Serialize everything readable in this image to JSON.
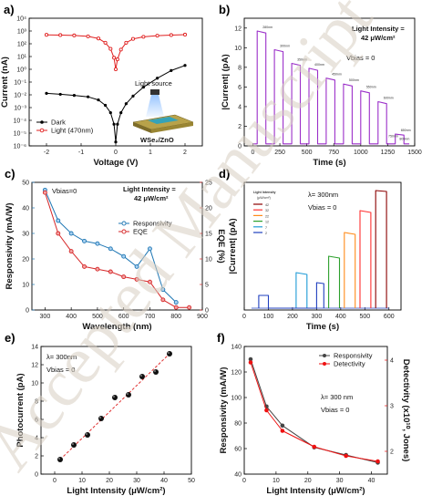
{
  "figure": {
    "watermark": "Accepted Manuscript",
    "panels": [
      "a)",
      "b)",
      "c)",
      "d)",
      "e)",
      "f)"
    ]
  },
  "chart_data": [
    {
      "panel": "a)",
      "type": "line",
      "xlabel": "Voltage (V)",
      "ylabel": "Current (nA)",
      "yscale": "log",
      "xlim": [
        -2.5,
        2.5
      ],
      "ylim": [
        1e-06,
        10000.0
      ],
      "xticks": [
        "-2",
        "-1",
        "0",
        "1",
        "2"
      ],
      "yticks": [
        "10⁴",
        "10³",
        "10²",
        "10¹",
        "10⁰",
        "10⁻¹",
        "10⁻²",
        "10⁻³",
        "10⁻⁴",
        "10⁻⁵",
        "10⁻⁶"
      ],
      "legend": "bottom-left",
      "series": [
        {
          "name": "Dark",
          "color": "#000000",
          "x": [
            -2,
            -1.6,
            -1.2,
            -0.8,
            -0.5,
            -0.3,
            -0.15,
            -0.05,
            0,
            0.05,
            0.15,
            0.3,
            0.5,
            0.8,
            1.2,
            1.6,
            2
          ],
          "y": [
            0.013,
            0.011,
            0.009,
            0.007,
            0.004,
            0.0015,
            0.0004,
            5e-05,
            2e-06,
            5e-05,
            0.0004,
            0.002,
            0.008,
            0.04,
            0.2,
            0.8,
            2
          ]
        },
        {
          "name": "Light (470nm)",
          "color": "#e02020",
          "x": [
            -2,
            -1.6,
            -1.2,
            -0.8,
            -0.5,
            -0.3,
            -0.15,
            -0.05,
            0,
            0.05,
            0.15,
            0.3,
            0.5,
            0.8,
            1.2,
            1.6,
            2
          ],
          "y": [
            500,
            480,
            450,
            380,
            260,
            120,
            40,
            8,
            1,
            6,
            35,
            120,
            240,
            350,
            430,
            480,
            520
          ]
        }
      ],
      "annotations": [
        "Light source",
        "WSe₂/ZnO"
      ]
    },
    {
      "panel": "b)",
      "type": "line",
      "xlabel": "Time (s)",
      "ylabel": "|Current| (pA)",
      "xlim": [
        -80,
        1500
      ],
      "ylim": [
        0,
        13
      ],
      "xticks": [
        "0",
        "250",
        "500",
        "750",
        "1000",
        "1250",
        "1500"
      ],
      "yticks": [
        "0",
        "2",
        "4",
        "6",
        "8",
        "10",
        "12"
      ],
      "annotations": [
        "Light Intensity =",
        "42 μW/cm²",
        "Vₕᵢₐₛ = 0"
      ],
      "series": [
        {
          "name": "",
          "color": "#9b2fc9",
          "x": [
            0,
            40,
            40,
            120,
            120,
            200,
            200,
            280,
            280,
            360,
            360,
            440,
            440,
            520,
            520,
            600,
            600,
            680,
            680,
            760,
            760,
            840,
            840,
            920,
            920,
            1000,
            1000,
            1080,
            1080,
            1160,
            1160,
            1240,
            1240,
            1320,
            1320,
            1400,
            1400,
            1450
          ],
          "y": [
            0.2,
            0.2,
            11.7,
            11.5,
            0.2,
            0.2,
            9.8,
            9.6,
            0.2,
            0.2,
            8.4,
            8.2,
            0.2,
            0.2,
            7.9,
            7.7,
            0.2,
            0.2,
            6.9,
            6.7,
            0.2,
            0.2,
            6.3,
            6.1,
            0.2,
            0.2,
            5.6,
            5.4,
            0.2,
            0.2,
            4.5,
            4.3,
            0.2,
            0.2,
            1.2,
            1.1,
            0.2,
            0.2
          ]
        }
      ],
      "data_labels": [
        "800nm",
        "750nm",
        "700nm",
        "650nm",
        "600nm",
        "550nm",
        "500nm",
        "450nm",
        "400nm",
        "350nm",
        "300nm",
        "280nm"
      ]
    },
    {
      "panel": "c)",
      "type": "line",
      "xlabel": "Wavelength (nm)",
      "ylabel": "Responsivity (mA/W)",
      "ylabel_right": "EQE (%)",
      "xlim": [
        250,
        900
      ],
      "ylim": [
        0,
        50
      ],
      "ylim_right": [
        0,
        25
      ],
      "xticks": [
        "300",
        "400",
        "500",
        "600",
        "700",
        "800",
        "900"
      ],
      "yticks": [
        "0",
        "10",
        "20",
        "30",
        "40",
        "50"
      ],
      "yticks_right": [
        "0",
        "5",
        "10",
        "15",
        "20",
        "25"
      ],
      "annotations": [
        "Vₕᵢₐₛ=0",
        "Light Intensity =",
        "42 μW/cm²"
      ],
      "legend": "right",
      "series": [
        {
          "name": "Responsivity",
          "color": "#1f77b4",
          "axis": "left",
          "x": [
            300,
            350,
            400,
            450,
            500,
            550,
            600,
            650,
            700,
            750,
            800
          ],
          "y": [
            47,
            35,
            30,
            27,
            26,
            24,
            21,
            17,
            24,
            8,
            3
          ]
        },
        {
          "name": "EQE",
          "color": "#d62728",
          "axis": "right",
          "x": [
            300,
            350,
            400,
            450,
            500,
            550,
            600,
            650,
            700,
            750,
            800,
            850
          ],
          "y": [
            23.0,
            15.0,
            11.5,
            8.5,
            8.0,
            7.5,
            6.5,
            6.0,
            5.5,
            2.0,
            0.5,
            0.5
          ]
        }
      ]
    },
    {
      "panel": "d)",
      "type": "line",
      "xlabel": "Time (s)",
      "ylabel": "|Current| (pA)",
      "xlim": [
        0,
        650
      ],
      "ylim": [
        0,
        14
      ],
      "xticks": [
        "0",
        "100",
        "200",
        "300",
        "400",
        "500",
        "600"
      ],
      "annotations": [
        "λ= 300nm",
        "Vₕᵢₐₛ = 0"
      ],
      "legend_title": "Light Intensity (μW/cm²)",
      "legend": "top-left",
      "series": [
        {
          "name": "42",
          "color": "#8b0000",
          "x": [
            545,
            545,
            590,
            590
          ],
          "y": [
            0.2,
            13.1,
            13.0,
            0.2
          ]
        },
        {
          "name": "32",
          "color": "#ff3030",
          "x": [
            480,
            480,
            525,
            525
          ],
          "y": [
            0.2,
            10.9,
            10.7,
            0.2
          ]
        },
        {
          "name": "22",
          "color": "#ff8c1a",
          "x": [
            415,
            415,
            460,
            460
          ],
          "y": [
            0.2,
            8.5,
            8.3,
            0.2
          ]
        },
        {
          "name": "12",
          "color": "#2ca02c",
          "x": [
            350,
            350,
            395,
            395
          ],
          "y": [
            0.2,
            5.9,
            5.7,
            0.2
          ]
        },
        {
          "name": "7",
          "color": "#1f9bd7",
          "x": [
            215,
            215,
            260,
            260
          ],
          "y": [
            0.2,
            4.1,
            3.9,
            0.2
          ]
        },
        {
          "name": "2",
          "color": "#1f3fbf",
          "x": [
            60,
            60,
            100,
            100,
            300,
            300,
            330,
            330
          ],
          "y": [
            0.2,
            1.6,
            1.6,
            0.2,
            0.2,
            3.0,
            2.9,
            0.2
          ]
        }
      ]
    },
    {
      "panel": "e)",
      "type": "scatter",
      "xlabel": "Light Intensity (μW/cm²)",
      "ylabel": "Photocurrent (pA)",
      "xlim": [
        -5,
        50
      ],
      "ylim": [
        0,
        14
      ],
      "xticks": [
        "0",
        "10",
        "20",
        "30",
        "40",
        "50"
      ],
      "yticks": [
        "0",
        "2",
        "4",
        "6",
        "8",
        "10",
        "12",
        "14"
      ],
      "annotations": [
        "λ= 300nm",
        "Vₕᵢₐₛ = 0"
      ],
      "series": [
        {
          "name": "",
          "color": "#111111",
          "x": [
            2,
            7,
            12,
            17,
            22,
            27,
            32,
            37,
            42
          ],
          "y": [
            1.6,
            3.2,
            4.3,
            6.1,
            8.4,
            8.7,
            10.7,
            11.2,
            13.2
          ]
        }
      ],
      "fit": {
        "color": "#e03030",
        "x": [
          2,
          42
        ],
        "y": [
          1.6,
          13.2
        ]
      }
    },
    {
      "panel": "f)",
      "type": "line",
      "xlabel": "Light Intensity (μW/cm²)",
      "ylabel": "Responsivity (mA/W)",
      "ylabel_right": "Detectivity (x10¹⁰, Jones)",
      "xlim": [
        0,
        45
      ],
      "ylim": [
        40,
        140
      ],
      "ylim_right": [
        1.5,
        4.3
      ],
      "xticks": [
        "0",
        "10",
        "20",
        "30",
        "40"
      ],
      "yticks": [
        "40",
        "60",
        "80",
        "100",
        "120",
        "140"
      ],
      "yticks_right": [
        "2",
        "3",
        "4"
      ],
      "annotations": [
        "λ= 300 nm",
        "Vₕᵢₐₛ = 0"
      ],
      "legend": "top-right",
      "series": [
        {
          "name": "Responsivity",
          "color": "#444444",
          "axis": "left",
          "x": [
            2,
            7,
            12,
            22,
            32,
            42
          ],
          "y": [
            130,
            93,
            78,
            61,
            55,
            49
          ]
        },
        {
          "name": "Detectivity",
          "color": "#ee1111",
          "axis": "right",
          "x": [
            2,
            7,
            12,
            22,
            32,
            42
          ],
          "y": [
            3.95,
            2.9,
            2.45,
            2.1,
            1.9,
            1.78
          ]
        }
      ]
    }
  ]
}
